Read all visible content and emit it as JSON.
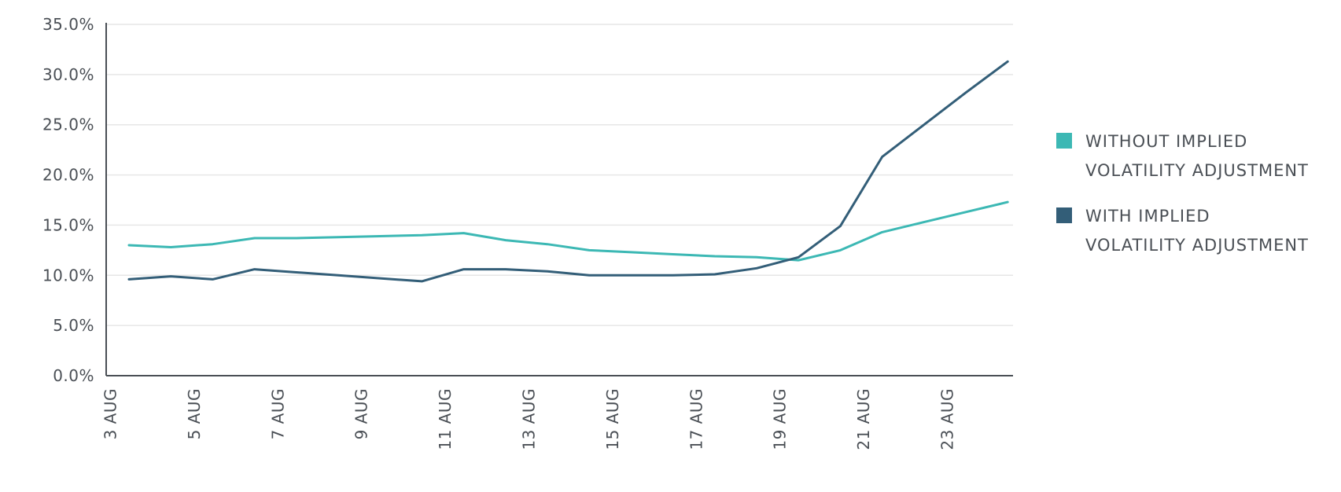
{
  "chart_data": {
    "type": "line",
    "title": "",
    "xlabel": "",
    "ylabel": "",
    "ylim": [
      0,
      35
    ],
    "y_ticks": [
      0,
      5,
      10,
      15,
      20,
      25,
      30,
      35
    ],
    "y_tick_labels": [
      "0.0%",
      "5.0%",
      "10.0%",
      "15.0%",
      "20.0%",
      "25.0%",
      "30.0%",
      "35.0%"
    ],
    "x_ticks": [
      "3 AUG",
      "5 AUG",
      "7 AUG",
      "9 AUG",
      "11 AUG",
      "13 AUG",
      "15 AUG",
      "17 AUG",
      "19 AUG",
      "21 AUG",
      "23 AUG"
    ],
    "x_dates": [
      "3 Aug",
      "4 Aug",
      "5 Aug",
      "6 Aug",
      "7 Aug",
      "8 Aug",
      "9 Aug",
      "10 Aug",
      "11 Aug",
      "12 Aug",
      "13 Aug",
      "14 Aug",
      "15 Aug",
      "16 Aug",
      "17 Aug",
      "18 Aug",
      "19 Aug",
      "20 Aug",
      "21 Aug",
      "22 Aug",
      "23 Aug",
      "24 Aug"
    ],
    "grid": true,
    "legend_position": "right",
    "series": [
      {
        "name": "WITHOUT IMPLIED VOLATILITY ADJUSTMENT",
        "legend_lines": [
          "WITHOUT IMPLIED",
          "VOLATILITY ADJUSTMENT"
        ],
        "color": "#3cb8b4",
        "values": [
          13.0,
          12.8,
          13.1,
          13.7,
          13.7,
          13.8,
          13.9,
          14.0,
          14.2,
          13.5,
          13.1,
          12.5,
          12.3,
          12.1,
          11.9,
          11.8,
          11.5,
          12.5,
          14.3,
          15.3,
          16.3,
          17.3
        ]
      },
      {
        "name": "WITH IMPLIED VOLATILITY ADJUSTMENT",
        "legend_lines": [
          "WITH IMPLIED",
          "VOLATILITY ADJUSTMENT"
        ],
        "color": "#335e78",
        "values": [
          9.6,
          9.9,
          9.6,
          10.6,
          10.3,
          10.0,
          9.7,
          9.4,
          10.6,
          10.6,
          10.4,
          10.0,
          10.0,
          10.0,
          10.1,
          10.7,
          11.8,
          14.9,
          21.8,
          25.0,
          28.2,
          31.3
        ]
      }
    ]
  }
}
